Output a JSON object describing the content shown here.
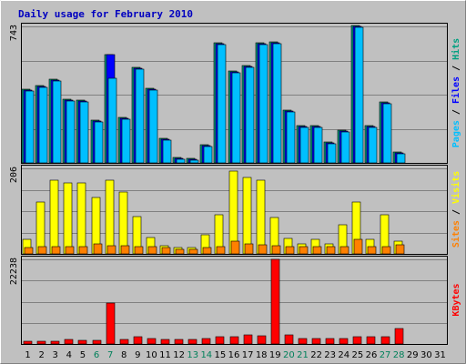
{
  "chart_data": {
    "type": "bar",
    "title": "Daily usage for February 2010",
    "categories": [
      "1",
      "2",
      "3",
      "4",
      "5",
      "6",
      "7",
      "8",
      "9",
      "10",
      "11",
      "12",
      "13",
      "14",
      "15",
      "16",
      "17",
      "18",
      "19",
      "20",
      "21",
      "22",
      "23",
      "24",
      "25",
      "26",
      "27",
      "28",
      "29",
      "30",
      "31"
    ],
    "weekend_days": [
      "6",
      "7",
      "13",
      "14",
      "20",
      "21",
      "27",
      "28"
    ],
    "panels": [
      {
        "id": "top",
        "max_label": "743",
        "ylim": [
          0,
          743
        ],
        "legend": [
          {
            "text": "Pages",
            "color": "#00bfff"
          },
          {
            "text": " / ",
            "color": "#000000"
          },
          {
            "text": "Files",
            "color": "#0000ff"
          },
          {
            "text": " / ",
            "color": "#000000"
          },
          {
            "text": "Hits",
            "color": "#00a080"
          }
        ],
        "series": [
          {
            "name": "Hits",
            "color": "#00a080",
            "values": [
              400,
              420,
              455,
              345,
              340,
              235,
              590,
              250,
              520,
              405,
              135,
              30,
              25,
              100,
              655,
              500,
              530,
              655,
              660,
              285,
              205,
              205,
              115,
              180,
              750,
              205,
              330,
              60,
              null,
              null,
              null
            ]
          },
          {
            "name": "Files",
            "color": "#0000ff",
            "values": [
              395,
              415,
              450,
              340,
              335,
              230,
              590,
              245,
              515,
              400,
              130,
              25,
              20,
              95,
              650,
              495,
              525,
              650,
              655,
              280,
              200,
              200,
              110,
              175,
              745,
              200,
              325,
              55,
              null,
              null,
              null
            ]
          },
          {
            "name": "Pages",
            "color": "#00bfff",
            "values": [
              390,
              410,
              445,
              335,
              330,
              225,
              460,
              240,
              510,
              395,
              125,
              20,
              15,
              90,
              645,
              490,
              520,
              645,
              650,
              275,
              195,
              195,
              105,
              170,
              740,
              195,
              320,
              50,
              null,
              null,
              null
            ]
          }
        ]
      },
      {
        "id": "mid",
        "max_label": "206",
        "ylim": [
          0,
          206
        ],
        "legend": [
          {
            "text": "Sites",
            "color": "#ff8000"
          },
          {
            "text": " / ",
            "color": "#000000"
          },
          {
            "text": "Visits",
            "color": "#ffff00"
          }
        ],
        "series": [
          {
            "name": "Visits",
            "color": "#ffff00",
            "values": [
              35,
              125,
              178,
              172,
              170,
              135,
              178,
              150,
              90,
              40,
              20,
              15,
              15,
              45,
              95,
              200,
              183,
              178,
              88,
              38,
              25,
              35,
              25,
              70,
              125,
              35,
              95,
              30,
              null,
              null,
              null
            ]
          },
          {
            "name": "Sites",
            "color": "#ff8000",
            "values": [
              15,
              17,
              17,
              17,
              17,
              25,
              20,
              20,
              18,
              18,
              15,
              10,
              12,
              15,
              17,
              30,
              25,
              22,
              20,
              17,
              17,
              17,
              17,
              17,
              35,
              18,
              18,
              22,
              null,
              null,
              null
            ]
          }
        ]
      },
      {
        "id": "bottom",
        "max_label": "22238",
        "ylim": [
          0,
          22238
        ],
        "legend": [
          {
            "text": "KBytes",
            "color": "#ff0000"
          }
        ],
        "series": [
          {
            "name": "KBytes",
            "color": "#ff0000",
            "values": [
              700,
              700,
              750,
              1100,
              900,
              1000,
              10800,
              1100,
              1800,
              1500,
              1100,
              1100,
              1100,
              1400,
              1800,
              1900,
              2300,
              2200,
              22238,
              2500,
              1500,
              1500,
              1500,
              1500,
              2000,
              1800,
              1800,
              4000,
              null,
              null,
              null
            ]
          }
        ]
      }
    ]
  }
}
